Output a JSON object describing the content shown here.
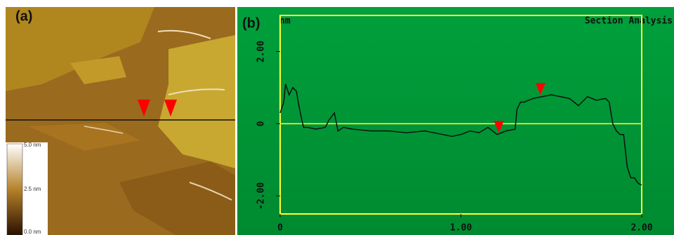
{
  "panel_a": {
    "label": "(a)",
    "colorbar_labels": [
      "5.0 nm",
      "2.5 nm",
      "0.0 nm"
    ]
  },
  "chart_data": {
    "type": "line",
    "panel_label": "(b)",
    "title": "Section Analysis",
    "y_unit": "nm",
    "x": [
      0,
      0.02,
      0.03,
      0.05,
      0.07,
      0.09,
      0.1,
      0.12,
      0.13,
      0.15,
      0.2,
      0.25,
      0.27,
      0.3,
      0.32,
      0.35,
      0.4,
      0.5,
      0.6,
      0.7,
      0.8,
      0.9,
      0.95,
      1.0,
      1.05,
      1.1,
      1.15,
      1.2,
      1.25,
      1.3,
      1.31,
      1.33,
      1.35,
      1.4,
      1.45,
      1.5,
      1.55,
      1.6,
      1.65,
      1.7,
      1.75,
      1.8,
      1.82,
      1.84,
      1.86,
      1.88,
      1.9,
      1.92,
      1.94,
      1.96,
      1.98,
      2.0
    ],
    "series": [
      {
        "color": "#111111",
        "values": [
          0.3,
          0.6,
          1.1,
          0.8,
          1.0,
          0.9,
          0.6,
          0.1,
          -0.1,
          -0.1,
          -0.15,
          -0.1,
          0.1,
          0.3,
          -0.2,
          -0.1,
          -0.15,
          -0.2,
          -0.2,
          -0.25,
          -0.2,
          -0.3,
          -0.35,
          -0.3,
          -0.2,
          -0.25,
          -0.1,
          -0.3,
          -0.2,
          -0.15,
          0.4,
          0.6,
          0.6,
          0.7,
          0.75,
          0.8,
          0.75,
          0.7,
          0.5,
          0.75,
          0.65,
          0.7,
          0.6,
          0.0,
          -0.2,
          -0.3,
          -0.3,
          -1.2,
          -1.5,
          -1.5,
          -1.65,
          -1.7
        ]
      }
    ],
    "cursors": {
      "x": [
        1.21,
        1.44
      ],
      "y": [
        -0.1,
        0.95
      ],
      "color": "#ff0000"
    },
    "xlim": [
      0,
      2
    ],
    "ylim": [
      -2.5,
      3
    ],
    "xticks": [
      0,
      {
        "value": 1,
        "label": "1.00"
      },
      {
        "value": 2,
        "label": "2.00"
      }
    ],
    "yticks": [
      {
        "value": 2,
        "label": "2.00"
      },
      0,
      {
        "value": -2,
        "label": "-2.00"
      }
    ],
    "grid_color": "#ffff33"
  }
}
